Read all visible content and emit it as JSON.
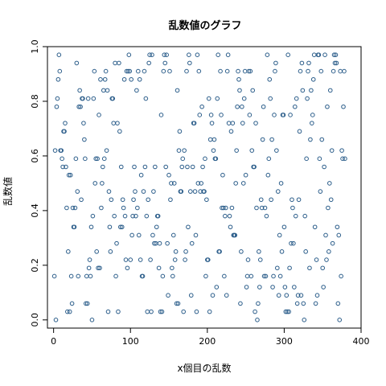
{
  "chart_data": {
    "type": "scatter",
    "title": "乱数値のグラフ",
    "xlabel": "x個目の乱数",
    "ylabel": "乱数値",
    "xlim": [
      -8,
      400
    ],
    "ylim": [
      -0.03,
      1.0
    ],
    "x_ticks": [
      0,
      100,
      200,
      300,
      400
    ],
    "y_ticks": [
      0.0,
      0.2,
      0.4,
      0.6,
      0.8,
      1.0
    ],
    "x_tick_labels": [
      "0",
      "100",
      "200",
      "300",
      "400"
    ],
    "y_tick_labels": [
      "0.0",
      "0.2",
      "0.4",
      "0.6",
      "0.8",
      "1.0"
    ],
    "grid": false,
    "marker_color": "#2b5d8a",
    "x_start": 1,
    "y": [
      0.16,
      0.62,
      0.0,
      0.78,
      0.81,
      0.88,
      0.97,
      0.91,
      0.62,
      0.62,
      0.59,
      0.56,
      0.69,
      0.69,
      0.72,
      0.56,
      0.41,
      0.03,
      0.25,
      0.53,
      0.03,
      0.53,
      0.16,
      0.06,
      0.41,
      0.34,
      0.34,
      0.41,
      0.59,
      0.94,
      0.47,
      0.16,
      0.78,
      0.84,
      0.78,
      0.44,
      0.81,
      0.81,
      0.72,
      0.66,
      0.59,
      0.06,
      0.16,
      0.06,
      0.81,
      0.19,
      0.22,
      0.16,
      0.34,
      0.0,
      0.38,
      0.81,
      0.91,
      0.5,
      0.59,
      0.25,
      0.59,
      0.19,
      0.75,
      0.19,
      0.88,
      0.41,
      0.5,
      0.56,
      0.84,
      0.59,
      0.88,
      0.91,
      0.62,
      0.84,
      0.03,
      0.47,
      0.34,
      0.25,
      0.44,
      0.81,
      0.81,
      0.72,
      0.38,
      0.94,
      0.16,
      0.28,
      0.72,
      0.03,
      0.94,
      0.69,
      0.34,
      0.56,
      0.34,
      0.44,
      0.41,
      0.88,
      0.38,
      0.22,
      0.91,
      0.19,
      0.91,
      0.97,
      0.91,
      0.22,
      0.88,
      0.31,
      0.38,
      0.44,
      0.56,
      0.47,
      0.38,
      0.84,
      0.41,
      0.91,
      0.31,
      0.88,
      0.22,
      0.53,
      0.16,
      0.16,
      0.47,
      0.91,
      0.56,
      0.81,
      0.38,
      0.03,
      0.44,
      0.94,
      0.97,
      0.22,
      0.03,
      0.97,
      0.31,
      0.47,
      0.28,
      0.56,
      0.28,
      0.34,
      0.38,
      0.38,
      0.19,
      0.28,
      0.03,
      0.75,
      0.03,
      0.16,
      0.91,
      0.97,
      0.94,
      0.56,
      0.97,
      0.28,
      0.09,
      0.53,
      0.91,
      0.44,
      0.5,
      0.19,
      0.16,
      0.31,
      0.5,
      0.22,
      0.25,
      0.06,
      0.84,
      0.06,
      0.62,
      0.69,
      0.47,
      0.47,
      0.56,
      0.59,
      0.03,
      0.62,
      0.22,
      0.25,
      0.91,
      0.56,
      0.34,
      0.97,
      0.94,
      0.47,
      0.09,
      0.28,
      0.56,
      0.72,
      0.72,
      0.47,
      0.31,
      0.03,
      0.97,
      0.5,
      0.91,
      0.75,
      0.47,
      0.5,
      0.78,
      0.56,
      0.47,
      0.47,
      0.59,
      0.16,
      0.44,
      0.22,
      0.22,
      0.81,
      0.03,
      0.66,
      0.75,
      0.72,
      0.09,
      0.62,
      0.66,
      0.59,
      0.59,
      0.12,
      0.81,
      0.97,
      0.25,
      0.25,
      0.91,
      0.75,
      0.41,
      0.53,
      0.41,
      0.16,
      0.38,
      0.41,
      0.09,
      0.91,
      0.97,
      0.72,
      0.38,
      0.34,
      0.69,
      0.41,
      0.72,
      0.31,
      0.31,
      0.31,
      0.5,
      0.62,
      0.78,
      0.91,
      0.88,
      0.84,
      0.06,
      0.25,
      0.78,
      0.72,
      0.5,
      0.81,
      0.91,
      0.53,
      0.12,
      0.16,
      0.22,
      0.91,
      0.75,
      0.91,
      0.16,
      0.62,
      0.84,
      0.56,
      0.56,
      0.03,
      0.72,
      0.41,
      0.0,
      0.06,
      0.25,
      0.12,
      0.22,
      0.44,
      0.41,
      0.66,
      0.78,
      0.16,
      0.41,
      0.16,
      0.38,
      0.97,
      0.53,
      0.59,
      0.88,
      0.81,
      0.44,
      0.66,
      0.12,
      0.16,
      0.75,
      0.91,
      0.94,
      0.62,
      0.19,
      0.47,
      0.09,
      0.31,
      0.16,
      0.5,
      0.25,
      0.75,
      0.75,
      0.34,
      0.12,
      0.03,
      0.09,
      0.03,
      0.97,
      0.03,
      0.19,
      0.75,
      0.28,
      0.44,
      0.41,
      0.28,
      0.12,
      0.78,
      0.38,
      0.81,
      0.06,
      0.09,
      0.44,
      0.69,
      0.91,
      0.09,
      0.94,
      0.84,
      0.06,
      0.0,
      0.38,
      0.25,
      0.59,
      0.81,
      0.91,
      0.94,
      0.19,
      0.66,
      0.84,
      0.72,
      0.75,
      0.88,
      0.97,
      0.34,
      0.06,
      0.22,
      0.09,
      0.97,
      0.97,
      0.59,
      0.47,
      0.91,
      0.66,
      0.19,
      0.12,
      0.56,
      0.97,
      0.31,
      0.22,
      0.78,
      0.41,
      0.25,
      0.5,
      0.84,
      0.44,
      0.62,
      0.28,
      0.91,
      0.97,
      0.94,
      0.97,
      0.94,
      0.34,
      0.06,
      0.31,
      0.0,
      0.91,
      0.16,
      0.62,
      0.59,
      0.78,
      0.91,
      0.59
    ]
  }
}
